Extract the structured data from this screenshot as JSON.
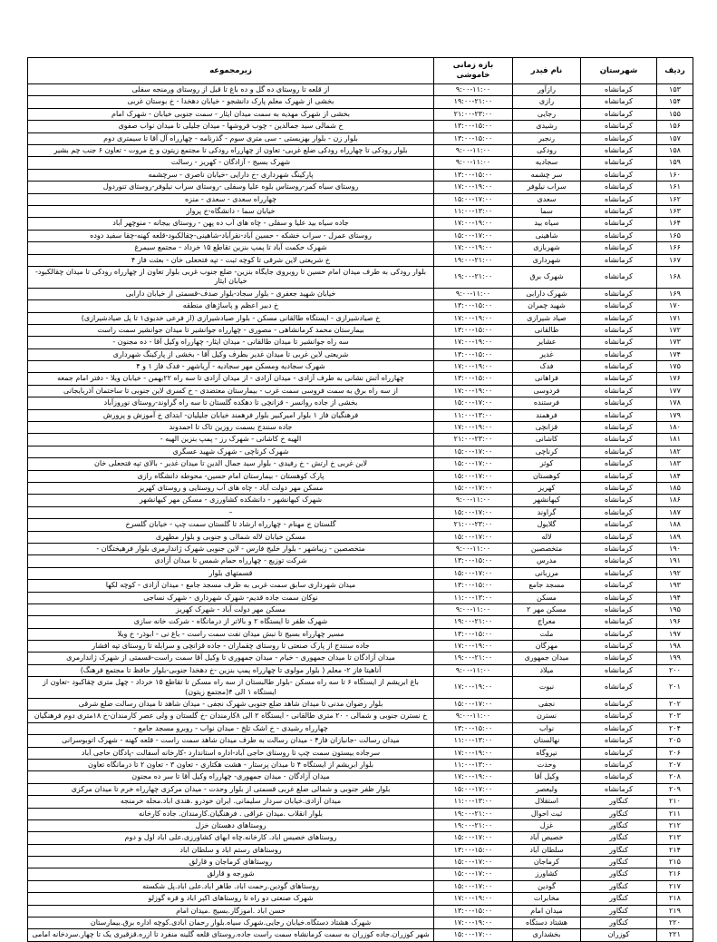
{
  "table": {
    "headers": {
      "row": "ردیف",
      "county": "شهرستان",
      "feeder": "نام فیدر",
      "time": "بازه زمانی خاموشی",
      "area": "زیرمجموعه"
    },
    "rows": [
      {
        "row": "۱۵۳",
        "county": "کرمانشاه",
        "feeder": "رازآور",
        "time": "۹:۰۰-۱۱:۰۰",
        "area": "از قلعه تا روستای ده گل و ده باغ تا قبل از روستای ورمنجه سفلی"
      },
      {
        "row": "۱۵۴",
        "county": "کرمانشاه",
        "feeder": "رازی",
        "time": "۱۹:۰۰-۲۱:۰۰",
        "area": "بخشی از شهرک معلم پارک دانشجو - خیابان دهخدا - خ بوستان غربی"
      },
      {
        "row": "۱۵۵",
        "county": "کرمانشاه",
        "feeder": "رجایی",
        "time": "۲۱:۰۰-۲۳:۰۰",
        "area": "بخشی از شهرک مهدیه به سمت میدان ایثار - سمت جنوبی خیابان - شهرک امام"
      },
      {
        "row": "۱۵۶",
        "county": "کرمانشاه",
        "feeder": "رشیدی",
        "time": "۱۳:۰۰-۱۵:۰۰",
        "area": "خ شمالی سید جمالدین - چوب فروشها - میدان جلیلی تا میدان نواب صفوی"
      },
      {
        "row": "۱۵۷",
        "county": "کرمانشاه",
        "feeder": "رنجبر",
        "time": "۱۳:۰۰-۱۵:۰۰",
        "area": "بلوار زن - بلوار بهزیستی - سی متری سوم - گذرنامه - چهارراه آل آقا تا سیمتری دوم"
      },
      {
        "row": "۱۵۸",
        "county": "کرمانشاه",
        "feeder": "رودکی",
        "time": "۹:۰۰-۱۱:۰۰",
        "area": "بلوار رودکی تا چهارراه رودکی ضلع غربی- تعاون از چهارراه رودکی تا مجتمع زیتون و خ مروت - تعاون ۶ جنب چم بشیر"
      },
      {
        "row": "۱۵۹",
        "county": "کرمانشاه",
        "feeder": "سجادیه",
        "time": "۹:۰۰-۱۱:۰۰",
        "area": "شهرک بسیج - آزادگان - کهریز - رسالت"
      },
      {
        "row": "۱۶۰",
        "county": "کرمانشاه",
        "feeder": "سر چشمه",
        "time": "۱۳:۰۰-۱۵:۰۰",
        "area": "پارکینگ شهرداری -خ دارایی -خیابان ناصری - سرچشمه"
      },
      {
        "row": "۱۶۱",
        "county": "کرمانشاه",
        "feeder": "سراب نیلوفر",
        "time": "۱۷:۰۰-۱۹:۰۰",
        "area": "روستای سیاه کمر-روستاس بلوه علیا وسفلی -روستای سراب نیلوفر-روستای تنوردول"
      },
      {
        "row": "۱۶۲",
        "county": "کرمانشاه",
        "feeder": "سعدی",
        "time": "۱۵:۰۰-۱۷:۰۰",
        "area": "چهارراه سعدی - سعدی - منزه"
      },
      {
        "row": "۱۶۳",
        "county": "کرمانشاه",
        "feeder": "سما",
        "time": "۱۱:۰۰-۱۳:۰۰",
        "area": "خیابان سما - دانشگاه-خ پرواز"
      },
      {
        "row": "۱۶۴",
        "county": "کرمانشاه",
        "feeder": "سیاه بید",
        "time": "۱۷:۰۰-۱۹:۰۰",
        "area": "جاده سیاه بید علیا و سفلی - چاه های آب ده پهن - روستای بیجانه - منوچهر آباد"
      },
      {
        "row": "۱۶۵",
        "county": "کرمانشاه",
        "feeder": "شاهینی",
        "time": "۱۵:۰۰-۱۷:۰۰",
        "area": "روستای عمرل - سراب خشکه - حسین آباد-نقرآباد-شاهینی-چقالکبود-قلعه کهنه-چقا سفید دوده"
      },
      {
        "row": "۱۶۶",
        "county": "کرمانشاه",
        "feeder": "شهربازی",
        "time": "۱۷:۰۰-۱۹:۰۰",
        "area": "شهرک حکمت آباد تا پمپ بنزین تقاطع ۱۵ خرداد - مجتمع سیمرغ"
      },
      {
        "row": "۱۶۷",
        "county": "کرمانشاه",
        "feeder": "شهرداری",
        "time": "۱۹:۰۰-۲۱:۰۰",
        "area": "خ شریعتی لاین شرقی تا کوچه ثبت - تپه فتحعلی خان - بعثت فاز ۴"
      },
      {
        "row": "۱۶۸",
        "county": "کرمانشاه",
        "feeder": "شهرک برق",
        "time": "۱۹:۰۰-۲۱:۰۰",
        "area": "بلوار رودکی به طرف میدان امام حسین تا روبروی جایگاه بنزین- ضلع جنوب غربی بلوار تعاون از چهارراه رودکی تا میدان چقالکبود- خیابان ایثار"
      },
      {
        "row": "۱۶۹",
        "county": "کرمانشاه",
        "feeder": "شهرک دارابی",
        "time": "۹:۰۰-۱۱:۰۰",
        "area": "خیابان شهید جعفری - بلوار سجاد-بلوار صدف-قسمتی از خیابان دارابی"
      },
      {
        "row": "۱۷۰",
        "county": "کرمانشاه",
        "feeder": "شهید چمران",
        "time": "۱۳:۰۰-۱۵:۰۰",
        "area": "خ دبیر اعظم و پاساژهای منطقه"
      },
      {
        "row": "۱۷۱",
        "county": "کرمانشاه",
        "feeder": "صیاد شیرازی",
        "time": "۱۷:۰۰-۱۹:۰۰",
        "area": "خ صیادشیرازی - ایستگاه طالقانی مسکن - بلوار صیادشیرازی (از فرعی خدیوی۱ تا پل صیادشیرازی)"
      },
      {
        "row": "۱۷۲",
        "county": "کرمانشاه",
        "feeder": "طالقانی",
        "time": "۱۳:۰۰-۱۵:۰۰",
        "area": "بیمارستان محمد کرمانشاهی - مصوری - چهارراه جوانشیر تا میدان جوانشیر سمت راست"
      },
      {
        "row": "۱۷۳",
        "county": "کرمانشاه",
        "feeder": "عشایر",
        "time": "۱۷:۰۰-۱۹:۰۰",
        "area": "سه راه جوانشیر تا میدان طالقانی - میدان ایثار- چهارراه وکیل آقا - ده مجنون -"
      },
      {
        "row": "۱۷۴",
        "county": "کرمانشاه",
        "feeder": "غدیر",
        "time": "۱۳:۰۰-۱۵:۰۰",
        "area": "شریعتی لاین غربی تا میدان غدیر بطرف وکیل آقا - بخشی از پارکینگ شهرداری"
      },
      {
        "row": "۱۷۵",
        "county": "کرمانشاه",
        "feeder": "فدک",
        "time": "۱۷:۰۰-۱۹:۰۰",
        "area": "شهرک سجادیه ومسکن مهر سجادیه - آریاشهر - فدک فاز ۱ و ۴"
      },
      {
        "row": "۱۷۶",
        "county": "کرمانشاه",
        "feeder": "فراهانی",
        "time": "۱۳:۰۰-۱۵:۰۰",
        "area": "چهارراه آتش نشانی به طرف آزادی - میدان آزادی - از میدان آزادی تا سه راه ۲۲بهمن - خیابان ویلا - دفتر امام جمعه"
      },
      {
        "row": "۱۷۷",
        "county": "کرمانشاه",
        "feeder": "فردوسی",
        "time": "۱۷:۰۰-۱۹:۰۰",
        "area": "از سه راه برق به سمت فروسی سمت غرب - بیمارستان معتضدی - خ کسری لاین جنوبی تا ساختمان آذربایجانی"
      },
      {
        "row": "۱۷۸",
        "county": "کرمانشاه",
        "feeder": "فرستنده",
        "time": "۱۵:۰۰-۱۷:۰۰",
        "area": "بخشی از جاده روانسر - قزانچی تا دهکده گلستان تا سه راه گراوند-روستای نوروزآباد"
      },
      {
        "row": "۱۷۹",
        "county": "کرمانشاه",
        "feeder": "فرهمند",
        "time": "۱۱:۰۰-۱۳:۰۰",
        "area": "فرهنگیان فاز ۱ بلوار امیرکبیر بلوار فرهمند خیابان جلیلیان- ابتدای خ آموزش و پرورش"
      },
      {
        "row": "۱۸۰",
        "county": "کرمانشاه",
        "feeder": "قزانچی",
        "time": "۱۷:۰۰-۱۹:۰۰",
        "area": "جاده سنندج بسمت روزین تاک تا احمدوند"
      },
      {
        "row": "۱۸۱",
        "county": "کرمانشاه",
        "feeder": "کاشانی",
        "time": "۲۱:۰۰-۲۳:۰۰",
        "area": "الهیه خ کاشانی - شهرک رز - پمپ بنزین الهیه -"
      },
      {
        "row": "۱۸۲",
        "county": "کرمانشاه",
        "feeder": "کرناچی",
        "time": "۱۵:۰۰-۱۷:۰۰",
        "area": "شهرک کرناچی - شهرک شهید عسگری"
      },
      {
        "row": "۱۸۳",
        "county": "کرمانشاه",
        "feeder": "کوثر",
        "time": "۱۵:۰۰-۱۷:۰۰",
        "area": "لاین غربی خ ارتش - خ رفیدی - بلوار سید جمال الدین تا میدان غدیر - بالای تپه فتحعلی خان"
      },
      {
        "row": "۱۸۴",
        "county": "کرمانشاه",
        "feeder": "کوهستان",
        "time": "۱۵:۰۰-۱۷:۰۰",
        "area": "پارک کوهستان - بیمارستان امام حسین- محوطه دانشگاه رازی"
      },
      {
        "row": "۱۸۵",
        "county": "کرمانشاه",
        "feeder": "کهریز",
        "time": "۱۵:۰۰-۱۷:۰۰",
        "area": "مسکن مهر دولت آباد - چاه های آب روستایی و روستای کهریز"
      },
      {
        "row": "۱۸۶",
        "county": "کرمانشاه",
        "feeder": "کیهانشهر",
        "time": "۹:۰۰-۱۱:۰۰",
        "area": "شهرک کیهانشهر - دانشکده کشاورزی - مسکن مهر کیهانشهر"
      },
      {
        "row": "۱۸۷",
        "county": "کرمانشاه",
        "feeder": "گراوند",
        "time": "۱۵:۰۰-۱۷:۰۰",
        "area": "–"
      },
      {
        "row": "۱۸۸",
        "county": "کرمانشاه",
        "feeder": "گلایول",
        "time": "۲۱:۰۰-۲۳:۰۰",
        "area": "گلستان خ مهنام - چهارراه ارشاد تا گلستان سمت چپ - خیابان گلسرخ"
      },
      {
        "row": "۱۸۹",
        "county": "کرمانشاه",
        "feeder": "لاله",
        "time": "۱۵:۰۰-۱۷:۰۰",
        "area": "مسکن خیابان لاله شمالی و جنوبی و بلوار مطهری"
      },
      {
        "row": "۱۹۰",
        "county": "کرمانشاه",
        "feeder": "متخصصین",
        "time": "۹:۰۰-۱۱:۰۰",
        "area": "متخصصین - زیباشهر - بلوار خلیج فارس - لاین جنوبی شهرک ژاندارمری بلوار فرهیختگان -"
      },
      {
        "row": "۱۹۱",
        "county": "کرمانشاه",
        "feeder": "مدرس",
        "time": "۱۳:۰۰-۱۵:۰۰",
        "area": "شرکت توزیع - چهارراه حمام شمس تا میدان آزادی"
      },
      {
        "row": "۱۹۲",
        "county": "کرمانشاه",
        "feeder": "مرزبانی",
        "time": "۱۵:۰۰-۱۷:۰۰",
        "area": "قسمتهای بلوار"
      },
      {
        "row": "۱۹۳",
        "county": "کرمانشاه",
        "feeder": "مسجد جامع",
        "time": "۱۳:۰۰-۱۵:۰۰",
        "area": "میدان شهرداری سابق سمت غربی به طرف مسجد جامع - میدان آزادی - کوچه لکها"
      },
      {
        "row": "۱۹۴",
        "county": "کرمانشاه",
        "feeder": "مسکن",
        "time": "۱۱:۰۰-۱۳:۰۰",
        "area": "نوکان سمت جاده قدیم- شهرک شهرداری - شهرک نساجی"
      },
      {
        "row": "۱۹۵",
        "county": "کرمانشاه",
        "feeder": "مسکن مهر ۲",
        "time": "۹:۰۰-۱۱:۰۰",
        "area": "مسکن مهر دولت آباد - شهرک کهریز"
      },
      {
        "row": "۱۹۶",
        "county": "کرمانشاه",
        "feeder": "معراج",
        "time": "۱۹:۰۰-۲۱:۰۰",
        "area": "شهرک ظفر تا ایستگاه ۲ و بالاتر از درمانگاه - شرکت خانه سازی"
      },
      {
        "row": "۱۹۷",
        "county": "کرمانشاه",
        "feeder": "ملت",
        "time": "۱۳:۰۰-۱۵:۰۰",
        "area": "مسیر چهارراه بسیج تا نبش میدان نفت سمت راست - باغ نی - ابوذر- خ ویلا"
      },
      {
        "row": "۱۹۸",
        "county": "کرمانشاه",
        "feeder": "مهرگان",
        "time": "۱۷:۰۰-۱۹:۰۰",
        "area": "جاده سنندج از پارک صنعتی تا روستای چقماران - جاده قزانچی و سرابله تا روستای تپه افشار"
      },
      {
        "row": "۱۹۹",
        "county": "کرمانشاه",
        "feeder": "میدان جمهوری",
        "time": "۱۹:۰۰-۲۱:۰۰",
        "area": "میدان آزادگان تا میدان جمهوری - خیام - میدان جمهوری تا وکیل آقا سمت راست-قسمتی از شهرک ژاندارمری"
      },
      {
        "row": "۲۰۰",
        "county": "کرمانشاه",
        "feeder": "میلاد",
        "time": "۹:۰۰-۱۱:۰۰",
        "area": "آناهیتا فاز ۲- معلم ( بلوار مولوی تا چهارراه پمپ بنزین -خ دهخدا جنوبی-بلوار حافظ تا مجتمع فرهنگ)"
      },
      {
        "row": "۲۰۱",
        "county": "کرمانشاه",
        "feeder": "نبوت",
        "time": "۱۷:۰۰-۱۹:۰۰",
        "area": "باغ ابریشم از ایستگاه ۶ تا سه راه مسکن -بلوار طالبستان از سه راه مسکن تا تقاطع ۱۵ خرداد - چهل متری چقاکبود -تعاون از ایستگاه ۱ الی ۴(مجتمع زیتون)"
      },
      {
        "row": "۲۰۲",
        "county": "کرمانشاه",
        "feeder": "نجفی",
        "time": "۱۵:۰۰-۱۷:۰۰",
        "area": "بلوار رضوان مدنی تا میدان شاهد ضلع جنوبی شهرک نجفی - میدان شاهد تا میدان رسالت ضلع شرقی"
      },
      {
        "row": "۲۰۳",
        "county": "کرمانشاه",
        "feeder": "نسترن",
        "time": "۹:۰۰-۱۱:۰۰",
        "area": "خ نسترن جنوبی و شمالی - ۲۰ متری طالقانی - ایستگاه ۲ الی ۸کارمندان -خ گلستان و ولی عصر کارمندان-خ ۱۸متری دوم فرهنگیان"
      },
      {
        "row": "۲۰۴",
        "county": "کرمانشاه",
        "feeder": "نواب",
        "time": "۱۳:۰۰-۱۵:۰۰",
        "area": "چهارراه رشیدی - خ اشک تلخ - میدان نواب - روبرو مسجد جامع -"
      },
      {
        "row": "۲۰۵",
        "county": "کرمانشاه",
        "feeder": "نهالستان",
        "time": "۱۱:۰۰-۱۳:۰۰",
        "area": "میدان رسالت -جانبازان فاز۴ - میدان رسالت به طرف میدان شاهد سمت راست - قلعه کهنه - شهرک اتوبوسرانی"
      },
      {
        "row": "۲۰۶",
        "county": "کرمانشاه",
        "feeder": "نیروگاه",
        "time": "۱۷:۰۰-۱۹:۰۰",
        "area": "سرجاده بیستون سمت چپ تا روستای حاجی آباد-اداره استاندارد -کارخانه آسفالت -پادگان حاجی آباد"
      },
      {
        "row": "۲۰۷",
        "county": "کرمانشاه",
        "feeder": "وحدت",
        "time": "۱۱:۰۰-۱۳:۰۰",
        "area": "بلوار ابریشم از ایستگاه ۴ تا میدان پرستار - هشت هکتاری - تعاون ۳ - تعاون ۲ تا درمانگاه تعاون"
      },
      {
        "row": "۲۰۸",
        "county": "کرمانشاه",
        "feeder": "وکیل آقا",
        "time": "۱۷:۰۰-۱۹:۰۰",
        "area": "میدان آزادگان - میدان جمهوری- چهارراه وکیل آقا تا سر ده مجنون"
      },
      {
        "row": "۲۰۹",
        "county": "کرمانشاه",
        "feeder": "ولیعصر",
        "time": "۱۵:۰۰-۱۷:۰۰",
        "area": "بلوار ظفر جنوبی و شمالی ضلع غربی قسمتی از بلوار وحدت - میدان مرکزی چهارراه خرم تا میدان مرکزی"
      },
      {
        "row": "۲۱۰",
        "county": "کنگاور",
        "feeder": "استقلال",
        "time": "۱۱:۰۰-۱۳:۰۰",
        "area": "میدان آزادی.خیابان سردار سلیمانی. ایران خودرو .هندی اباد.محله خرمنجه"
      },
      {
        "row": "۲۱۱",
        "county": "کنگاور",
        "feeder": "ثبت احوال",
        "time": "۱۹:۰۰-۲۱:۰۰",
        "area": "بلوار انقلاب .میدان عراقی . فرهنگیان.کارمندان. جاده کارخانه"
      },
      {
        "row": "۲۱۲",
        "county": "کنگاور",
        "feeder": "غزل",
        "time": "۱۹:۰۰-۲۱:۰۰",
        "area": "روستاهای دهستان خزل"
      },
      {
        "row": "۲۱۳",
        "county": "کنگاور",
        "feeder": "خصیص آباد",
        "time": "۱۵:۰۰-۱۷:۰۰",
        "area": "روستاهای خصیس اباد. کارخانه.چاه ابهای کشاورزی.علی اباد اول و دوم"
      },
      {
        "row": "۲۱۴",
        "county": "کنگاور",
        "feeder": "سلطان آباد",
        "time": "۱۳:۰۰-۱۵:۰۰",
        "area": "روستاهای رستم اباد و سلطان اباد"
      },
      {
        "row": "۲۱۵",
        "county": "کنگاور",
        "feeder": "کرماجان",
        "time": "۱۵:۰۰-۱۷:۰۰",
        "area": "روستاهای کرماجان و قارلق"
      },
      {
        "row": "۲۱۶",
        "county": "کنگاور",
        "feeder": "کشاورز",
        "time": "۱۵:۰۰-۱۷:۰۰",
        "area": "شورجه و قارلق"
      },
      {
        "row": "۲۱۷",
        "county": "کنگاور",
        "feeder": "گودین",
        "time": "۱۵:۰۰-۱۷:۰۰",
        "area": "روستاهای گودین.رحمت اباد. طاهر اباد.علی اباد.پل شکسته"
      },
      {
        "row": "۲۱۸",
        "county": "کنگاور",
        "feeder": "مخابرات",
        "time": "۱۷:۰۰-۱۹:۰۰",
        "area": "شهرک صنعتی دو راه تا روستاهای اکبر اباد و قره گوزلو"
      },
      {
        "row": "۲۱۹",
        "county": "کنگاور",
        "feeder": "میدان امام",
        "time": "۱۳:۰۰-۱۵:۰۰",
        "area": "حسن اباد .اموزگار.بسیج .میدان امام"
      },
      {
        "row": "۲۲۰",
        "county": "کنگاور",
        "feeder": "هشتاد دستگاه",
        "time": "۱۷:۰۰-۱۹:۰۰",
        "area": "شهرک هشتاد دستگاه.خیابان رجایی.شهرک سیاه.بلوار رحمان ابادی.کوچه اداره برق.بیمارستان"
      },
      {
        "row": "۲۲۱",
        "county": "کوزران",
        "feeder": "بخشداری",
        "time": "۱۵:۰۰-۱۷:۰۰",
        "area": "شهر کوزران.جاده کوزران به سمت کرمانشاه سمت راست جاده.روستای قلعه گلینه منفرد تا ازره.قزقیری یک تا چهار.سردخانه امامی"
      }
    ]
  }
}
